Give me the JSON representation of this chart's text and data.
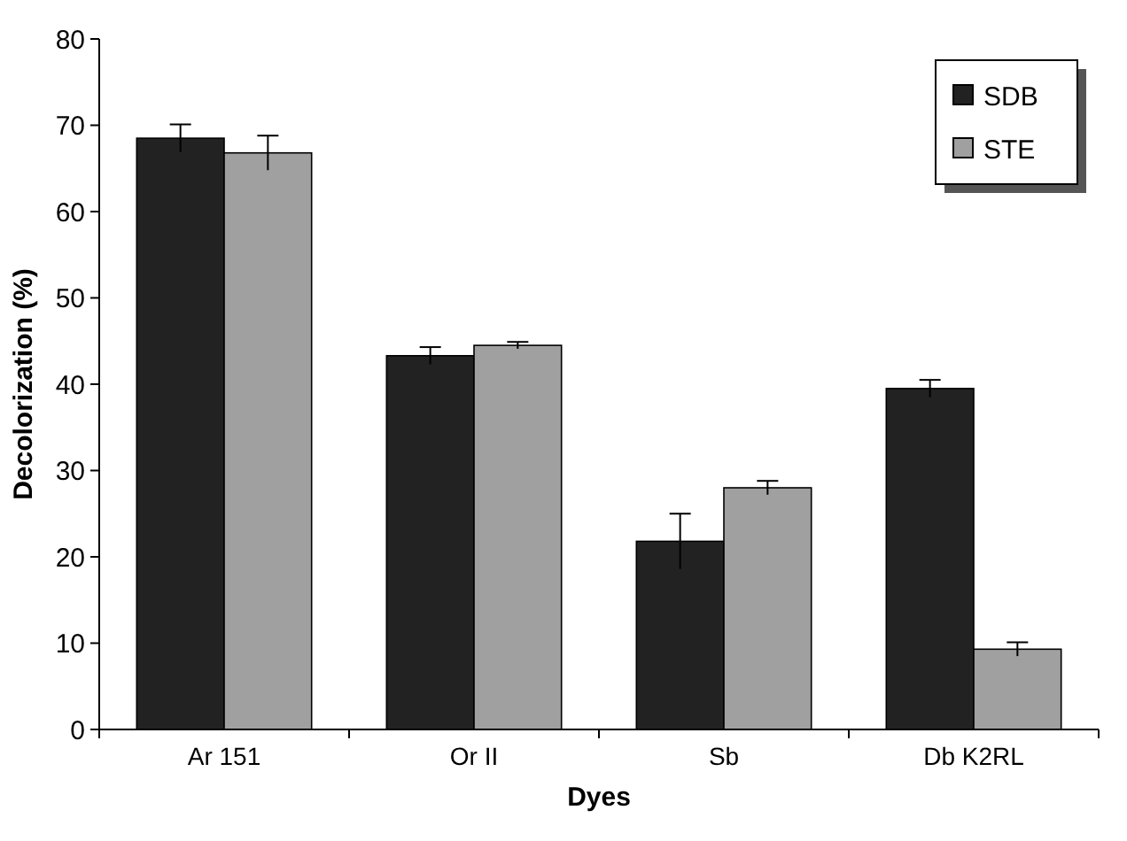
{
  "chart_data": {
    "type": "bar",
    "xlabel": "Dyes",
    "ylabel": "Decolorization (%)",
    "categories": [
      "Ar 151",
      "Or II",
      "Sb",
      "Db K2RL"
    ],
    "series": [
      {
        "name": "SDB",
        "color": "#222222",
        "values": [
          68.5,
          43.3,
          21.8,
          39.5
        ],
        "errors": [
          1.6,
          1.0,
          3.2,
          1.0
        ]
      },
      {
        "name": "STE",
        "color": "#a0a0a0",
        "values": [
          66.8,
          44.5,
          28.0,
          9.3
        ],
        "errors": [
          2.0,
          0.4,
          0.8,
          0.8
        ]
      }
    ],
    "ylim": [
      0,
      80
    ],
    "yticks": [
      0,
      10,
      20,
      30,
      40,
      50,
      60,
      70,
      80
    ],
    "grid": false,
    "legend": "top right"
  }
}
